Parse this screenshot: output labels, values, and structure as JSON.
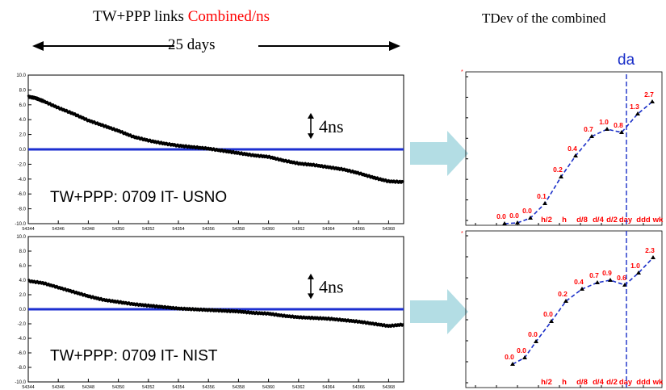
{
  "header": {
    "left_title_part1": "TW+PPP links ",
    "left_title_part2": "Combined/ns",
    "span_label": "25 days",
    "right_title": "TDev of the combined"
  },
  "colors": {
    "series_line": "#000000",
    "zero_line": "#1c2fd0",
    "title_accent": "#ff0000",
    "point_label": "#ff0000",
    "tdev_curve": "#1a2fc8",
    "arrow_fill": "#b3dde4"
  },
  "chart_data": [
    {
      "id": "left-top",
      "type": "line",
      "annotation": "TW+PPP: 0709 IT- USNO",
      "scale_note": "4ns",
      "xlim": [
        54344,
        54369
      ],
      "xticks": [
        "54344",
        "54346",
        "54348",
        "54350",
        "54352",
        "54354",
        "54356",
        "54358",
        "54360",
        "54362",
        "54364",
        "54366",
        "54368"
      ],
      "ylim": [
        -10,
        10
      ],
      "yticks": [
        "10.0",
        "8.0",
        "6.0",
        "4.0",
        "2.0",
        "0.0",
        "-2.0",
        "-4.0",
        "-6.0",
        "-8.0",
        "-10.0"
      ],
      "reference_y": 0,
      "series": [
        {
          "x": [
            54344,
            54344.5,
            54345,
            54346,
            54347,
            54348,
            54349,
            54350,
            54351,
            54352,
            54353,
            54354,
            54355,
            54356,
            54357,
            54358,
            54359,
            54360,
            54361,
            54362,
            54363,
            54364,
            54365,
            54366,
            54367,
            54368,
            54369
          ],
          "y": [
            7.1,
            6.9,
            6.5,
            5.6,
            4.8,
            3.9,
            3.2,
            2.5,
            1.7,
            1.2,
            0.8,
            0.5,
            0.3,
            0.1,
            -0.2,
            -0.5,
            -0.8,
            -1.0,
            -1.5,
            -1.9,
            -2.1,
            -2.4,
            -2.7,
            -3.2,
            -3.8,
            -4.3,
            -4.4
          ]
        }
      ]
    },
    {
      "id": "left-bottom",
      "type": "line",
      "annotation": "TW+PPP: 0709 IT- NIST",
      "scale_note": "4ns",
      "xlim": [
        54344,
        54369
      ],
      "xticks": [
        "54344",
        "54346",
        "54348",
        "54350",
        "54352",
        "54354",
        "54356",
        "54358",
        "54360",
        "54362",
        "54364",
        "54366",
        "54368"
      ],
      "ylim": [
        -10,
        10
      ],
      "yticks": [
        "10.0",
        "8.0",
        "6.0",
        "4.0",
        "2.0",
        "0.0",
        "-2.0",
        "-4.0",
        "-6.0",
        "-8.0",
        "-10.0"
      ],
      "reference_y": 0,
      "series": [
        {
          "x": [
            54344,
            54345,
            54346,
            54347,
            54348,
            54349,
            54350,
            54351,
            54352,
            54353,
            54354,
            54355,
            54356,
            54357,
            54358,
            54359,
            54360,
            54361,
            54362,
            54363,
            54364,
            54365,
            54366,
            54367,
            54368,
            54369
          ],
          "y": [
            3.9,
            3.6,
            3.0,
            2.4,
            1.8,
            1.3,
            1.0,
            0.7,
            0.5,
            0.3,
            0.1,
            0.0,
            -0.1,
            -0.2,
            -0.3,
            -0.5,
            -0.6,
            -0.9,
            -1.1,
            -1.2,
            -1.3,
            -1.5,
            -1.7,
            -2.0,
            -2.3,
            -2.1
          ]
        }
      ]
    },
    {
      "id": "right-top",
      "type": "line",
      "vertical_marker_label": "da",
      "x_labels": [
        "h/2",
        "h",
        "d/8",
        "d/4",
        "d/2",
        "day",
        "ddd",
        "wk"
      ],
      "series": [
        {
          "x": [
            1,
            2,
            3,
            4,
            5,
            6,
            7,
            8,
            9,
            10,
            11,
            12
          ],
          "labels": [
            "0.0",
            "0.0",
            "0.0",
            "0.1",
            "0.2",
            "0.4",
            "0.7",
            "1.0",
            "0.8",
            "1.3",
            "2.7",
            ""
          ],
          "y": [
            0.0,
            0.01,
            0.02,
            0.1,
            0.2,
            0.4,
            0.7,
            1.0,
            0.8,
            1.3,
            2.7,
            2.7
          ]
        }
      ]
    },
    {
      "id": "right-bottom",
      "type": "line",
      "x_labels": [
        "h/2",
        "h",
        "d/8",
        "d/4",
        "d/2",
        "day",
        "ddd",
        "wk"
      ],
      "series": [
        {
          "x": [
            1,
            2,
            3,
            4,
            5,
            6,
            7,
            8,
            9,
            10,
            11
          ],
          "labels": [
            "0.0",
            "0.0",
            "0.0",
            "0.0",
            "0.2",
            "0.4",
            "0.7",
            "0.9",
            "0.6",
            "1.0",
            "2.3"
          ],
          "y": [
            0.0,
            0.01,
            0.02,
            0.05,
            0.2,
            0.4,
            0.7,
            0.9,
            0.6,
            1.0,
            2.3
          ]
        }
      ]
    }
  ]
}
